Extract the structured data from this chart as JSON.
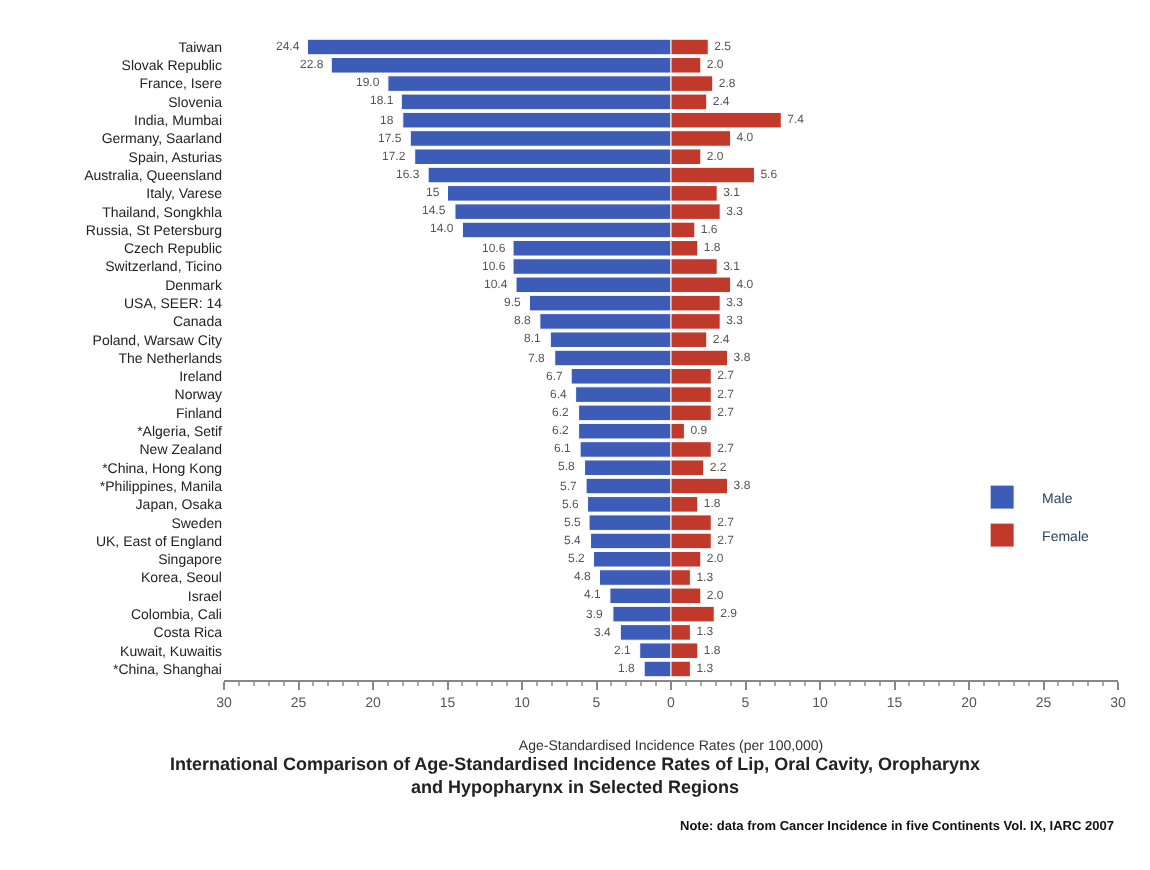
{
  "chart_data": {
    "type": "bar",
    "orientation": "horizontal",
    "title": "International Comparison of Age-Standardised Incidence Rates of Lip, Oral Cavity, Oropharynx\nand Hypopharynx in Selected Regions",
    "xlabel": "Age-Standardised Incidence Rates (per 100,000)",
    "annotations": [
      "Note: data from Cancer Incidence in five Continents Vol. IX, IARC 2007"
    ],
    "categories": [
      "Taiwan",
      "Slovak Republic",
      "France, Isere",
      "Slovenia",
      "India, Mumbai",
      "Germany, Saarland",
      "Spain, Asturias",
      "Australia, Queensland",
      "Italy, Varese",
      "Thailand, Songkhla",
      "Russia, St Petersburg",
      "Czech Republic",
      "Switzerland, Ticino",
      "Denmark",
      "USA, SEER: 14",
      "Canada",
      "Poland, Warsaw City",
      "The Netherlands",
      "Ireland",
      "Norway",
      "Finland",
      "*Algeria, Setif",
      "New Zealand",
      "*China, Hong Kong",
      "*Philippines, Manila",
      "Japan, Osaka",
      "Sweden",
      "UK, East of England",
      "Singapore",
      "Korea, Seoul",
      "Israel",
      "Colombia, Cali",
      "Costa Rica",
      "Kuwait, Kuwaitis",
      "*China, Shanghai"
    ],
    "series": [
      {
        "name": "Male",
        "color": "#3c5cb8",
        "values": [
          24.4,
          22.8,
          19.0,
          18.1,
          18.0,
          17.5,
          17.2,
          16.3,
          15.0,
          14.5,
          14.0,
          10.6,
          10.6,
          10.4,
          9.5,
          8.8,
          8.1,
          7.8,
          6.7,
          6.4,
          6.2,
          6.2,
          6.1,
          5.8,
          5.7,
          5.6,
          5.5,
          5.4,
          5.2,
          4.8,
          4.1,
          3.9,
          3.4,
          2.1,
          1.8
        ],
        "base": [
          -24.4,
          -22.8,
          -19.0,
          -18.1,
          -18.0,
          -17.5,
          -17.2,
          -16.3,
          -15.0,
          -14.5,
          -14.0,
          -10.6,
          -10.6,
          -10.4,
          -9.5,
          -8.8,
          -8.1,
          -7.8,
          -6.7,
          -6.4,
          -6.2,
          -6.2,
          -6.1,
          -5.8,
          -5.7,
          -5.6,
          -5.5,
          -5.4,
          -5.2,
          -4.8,
          -4.1,
          -3.9,
          -3.4,
          -2.1,
          -1.8
        ],
        "value_labels": [
          "24.4",
          "22.8",
          "19.0",
          "18.1",
          "18",
          "17.5",
          "17.2",
          "16.3",
          "15",
          "14.5",
          "14.0",
          "10.6",
          "10.6",
          "10.4",
          "9.5",
          "8.8",
          "8.1",
          "7.8",
          "6.7",
          "6.4",
          "6.2",
          "6.2",
          "6.1",
          "5.8",
          "5.7",
          "5.6",
          "5.5",
          "5.4",
          "5.2",
          "4.8",
          "4.1",
          "3.9",
          "3.4",
          "2.1",
          "1.8"
        ]
      },
      {
        "name": "Female",
        "color": "#c0392b",
        "values": [
          2.5,
          2.0,
          2.8,
          2.4,
          7.4,
          4.0,
          2.0,
          5.6,
          3.1,
          3.3,
          1.6,
          1.8,
          3.1,
          4.0,
          3.3,
          3.3,
          2.4,
          3.8,
          2.7,
          2.7,
          2.7,
          0.9,
          2.7,
          2.2,
          3.8,
          1.8,
          2.7,
          2.7,
          2.0,
          1.3,
          2.0,
          2.9,
          1.3,
          1.8,
          1.3
        ],
        "value_labels": [
          "2.5",
          "2.0",
          "2.8",
          "2.4",
          "7.4",
          "4.0",
          "2.0",
          "5.6",
          "3.1",
          "3.3",
          "1.6",
          "1.8",
          "3.1",
          "4.0",
          "3.3",
          "3.3",
          "2.4",
          "3.8",
          "2.7",
          "2.7",
          "2.7",
          "0.9",
          "2.7",
          "2.2",
          "3.8",
          "1.8",
          "2.7",
          "2.7",
          "2.0",
          "1.3",
          "2.0",
          "2.9",
          "1.3",
          "1.8",
          "1.3"
        ]
      }
    ],
    "xlim": [
      -30,
      30
    ],
    "xticks": [
      {
        "value": -30,
        "label": "30"
      },
      {
        "value": -25,
        "label": "25"
      },
      {
        "value": -20,
        "label": "20"
      },
      {
        "value": -15,
        "label": "15"
      },
      {
        "value": -10,
        "label": "10"
      },
      {
        "value": -5,
        "label": "5"
      },
      0,
      5,
      10,
      15,
      20,
      25,
      30
    ],
    "legend": "bottom right"
  }
}
